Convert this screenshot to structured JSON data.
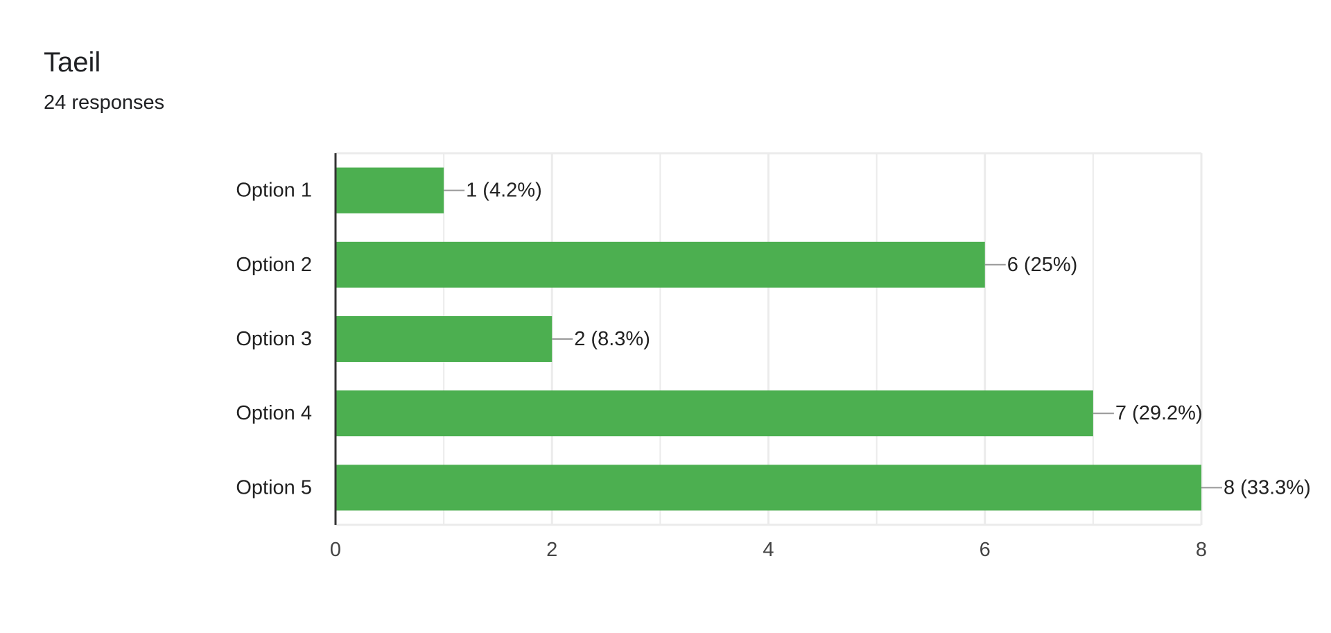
{
  "question": {
    "title": "Taeil",
    "responses": "24 responses"
  },
  "chart_data": {
    "type": "bar",
    "orientation": "horizontal",
    "categories": [
      "Option 1",
      "Option 2",
      "Option 3",
      "Option 4",
      "Option 5"
    ],
    "values": [
      1,
      6,
      2,
      7,
      8
    ],
    "data_labels": [
      "1 (4.2%)",
      "6 (25%)",
      "2 (8.3%)",
      "7 (29.2%)",
      "8 (33.3%)"
    ],
    "x_ticks": [
      0,
      2,
      4,
      6,
      8
    ],
    "xlim": [
      0,
      8
    ],
    "grid": true,
    "colors": {
      "bar": "#4caf50",
      "grid": "#ebebeb",
      "axis": "#333333",
      "leader": "#999999"
    },
    "title": "",
    "xlabel": "",
    "ylabel": ""
  }
}
